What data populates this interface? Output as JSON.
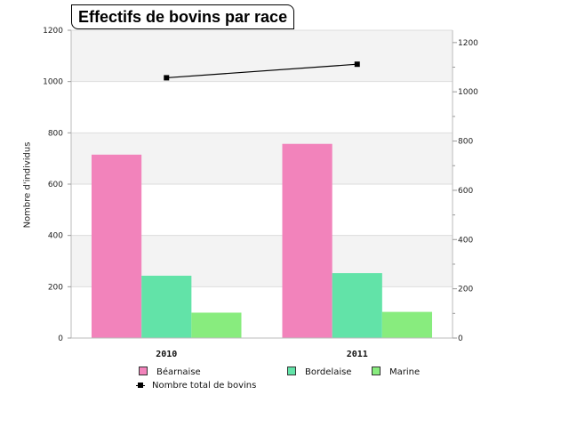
{
  "chart_data": {
    "type": "bar",
    "title": "Effectifs de bovins par race",
    "ylabel": "Nombre d'individus",
    "xlabel": "",
    "categories": [
      "2010",
      "2011"
    ],
    "ylim": [
      0,
      1200
    ],
    "yticks": [
      "0",
      "200",
      "400",
      "600",
      "800",
      "1000",
      "1200"
    ],
    "y2lim": [
      0,
      1250
    ],
    "y2ticks": [
      "0",
      "200",
      "400",
      "600",
      "800",
      "1000",
      "1200"
    ],
    "grid": true,
    "legend_position": "bottom",
    "series": [
      {
        "name": "Béarnaise",
        "type": "bar",
        "color": "#f283bb",
        "values": [
          715,
          757
        ]
      },
      {
        "name": "Bordelaise",
        "type": "bar",
        "color": "#62e3a8",
        "values": [
          243,
          253
        ]
      },
      {
        "name": "Marine",
        "type": "bar",
        "color": "#88ec7e",
        "values": [
          99,
          102
        ]
      },
      {
        "name": "Nombre total de bovins",
        "type": "line",
        "axis": "right",
        "color": "#000000",
        "values": [
          1057,
          1112
        ]
      }
    ]
  }
}
